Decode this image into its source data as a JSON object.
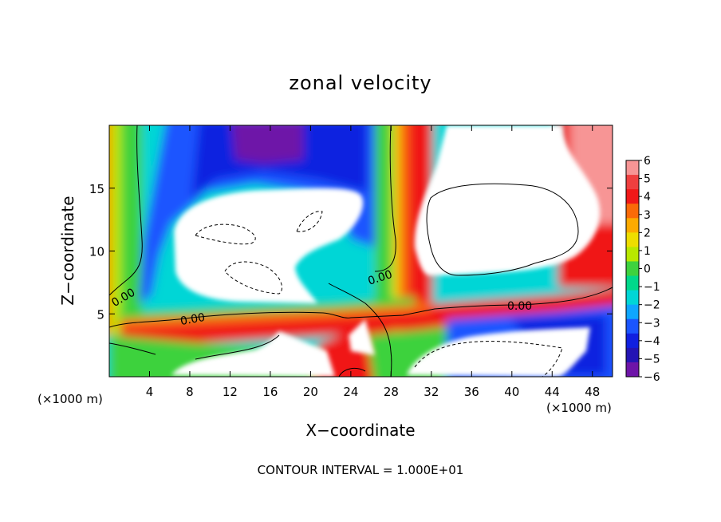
{
  "chart_data": {
    "type": "heatmap",
    "title": "zonal velocity",
    "xlabel": "X−coordinate",
    "ylabel": "Z−coordinate",
    "x_unit": "(×1000 m)",
    "z_unit": "(×1000 m)",
    "xlim": [
      0,
      50
    ],
    "ylim": [
      0,
      20
    ],
    "x_ticks": [
      4,
      8,
      12,
      16,
      20,
      24,
      28,
      32,
      36,
      40,
      44,
      48
    ],
    "y_ticks": [
      5,
      10,
      15
    ],
    "colorbar": {
      "ticks": [
        "6",
        "5",
        "4",
        "3",
        "2",
        "1",
        "0",
        "−1",
        "−2",
        "−3",
        "−4",
        "−5",
        "−6"
      ],
      "range": [
        -6,
        6
      ],
      "colors": [
        "#f79595",
        "#ef3f3f",
        "#f01818",
        "#fa6a08",
        "#fdaa00",
        "#eedd00",
        "#b8e800",
        "#3ed23e",
        "#00d88a",
        "#00d6d6",
        "#0ea6ff",
        "#1a55ff",
        "#1020e0",
        "#2414b4",
        "#6e14a8"
      ]
    },
    "contour_labels": [
      "0.00",
      "0.00",
      "0.00",
      "0.00"
    ],
    "contour_interval_text": "CONTOUR INTERVAL = 1.000E+01"
  }
}
